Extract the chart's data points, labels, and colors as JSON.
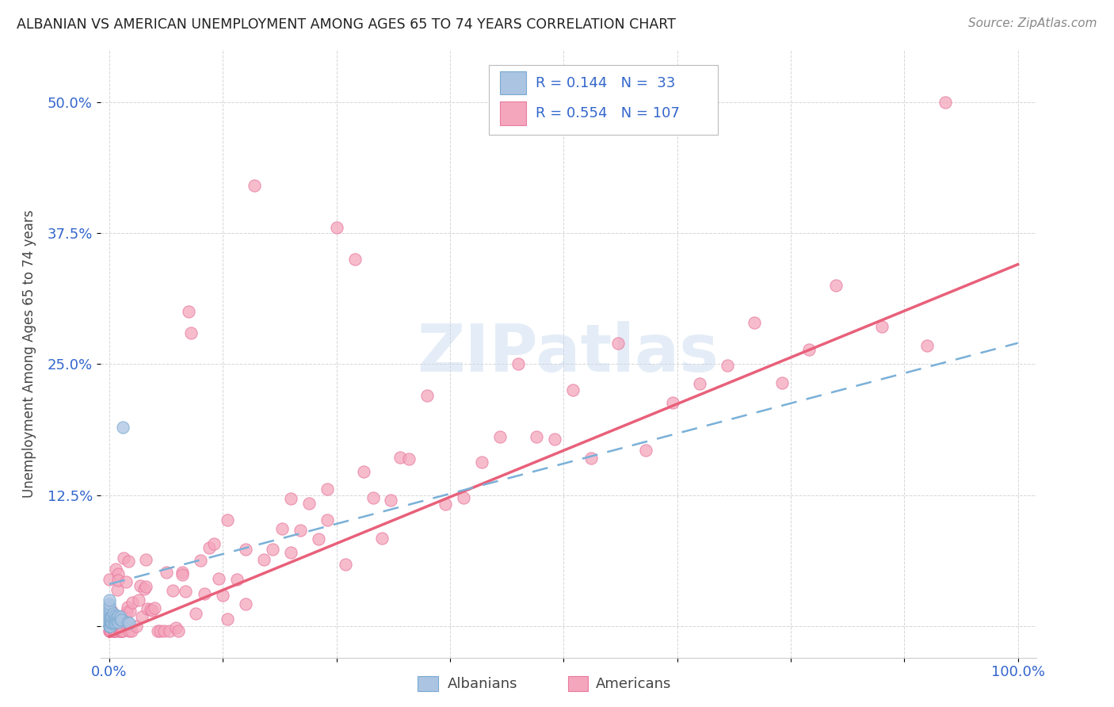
{
  "title": "ALBANIAN VS AMERICAN UNEMPLOYMENT AMONG AGES 65 TO 74 YEARS CORRELATION CHART",
  "source": "Source: ZipAtlas.com",
  "ylabel": "Unemployment Among Ages 65 to 74 years",
  "xlim": [
    -0.01,
    1.02
  ],
  "ylim": [
    -0.03,
    0.55
  ],
  "x_ticks": [
    0.0,
    0.125,
    0.25,
    0.375,
    0.5,
    0.625,
    0.75,
    0.875,
    1.0
  ],
  "x_tick_labels": [
    "0.0%",
    "",
    "",
    "",
    "",
    "",
    "",
    "",
    "100.0%"
  ],
  "y_ticks": [
    0.0,
    0.125,
    0.25,
    0.375,
    0.5
  ],
  "y_tick_labels": [
    "",
    "12.5%",
    "25.0%",
    "37.5%",
    "50.0%"
  ],
  "albanian_color": "#aac4e2",
  "american_color": "#f4a6bc",
  "albanian_edge": "#7aaad0",
  "american_edge": "#e87aa0",
  "trendline_albanian_color": "#7ab0d8",
  "trendline_american_color": "#e8607a",
  "R_albanian": 0.144,
  "N_albanian": 33,
  "R_american": 0.554,
  "N_american": 107,
  "watermark": "ZIPatlas",
  "alb_trend_x0": 0.0,
  "alb_trend_y0": 0.04,
  "alb_trend_x1": 1.0,
  "alb_trend_y1": 0.27,
  "am_trend_x0": 0.0,
  "am_trend_y0": -0.01,
  "am_trend_x1": 1.0,
  "am_trend_y1": 0.345
}
